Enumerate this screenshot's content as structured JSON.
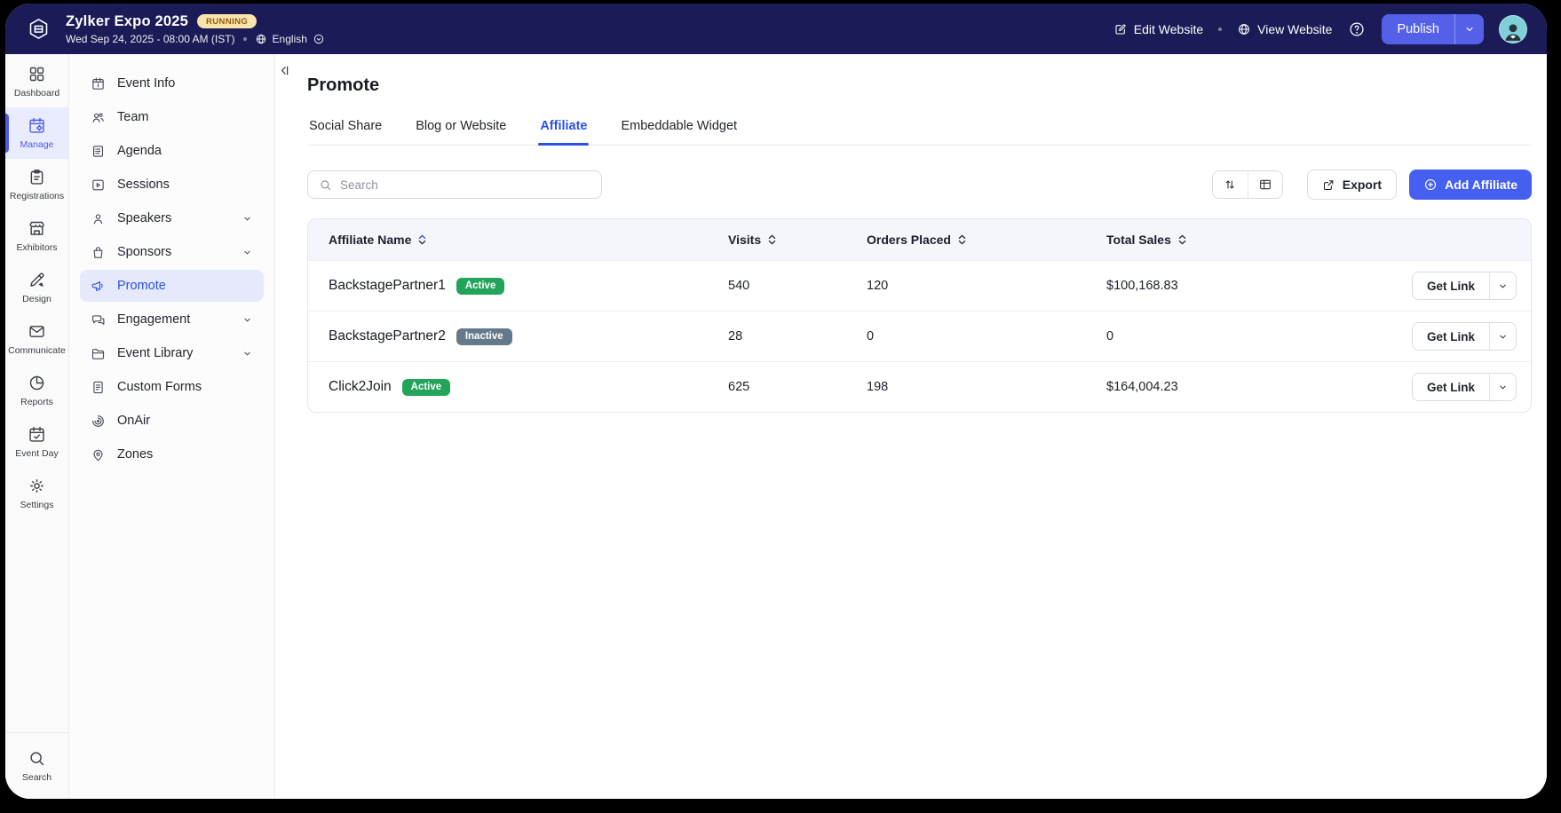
{
  "header": {
    "event_title": "Zylker Expo 2025",
    "status_badge": "RUNNING",
    "event_datetime": "Wed Sep 24, 2025 - 08:00 AM (IST)",
    "language": "English",
    "edit_website_label": "Edit Website",
    "view_website_label": "View Website",
    "publish_label": "Publish"
  },
  "nav_rail": {
    "items": [
      {
        "label": "Dashboard",
        "icon": "dashboard",
        "active": false
      },
      {
        "label": "Manage",
        "icon": "manage",
        "active": true
      },
      {
        "label": "Registrations",
        "icon": "registrations",
        "active": false
      },
      {
        "label": "Exhibitors",
        "icon": "exhibitors",
        "active": false
      },
      {
        "label": "Design",
        "icon": "design",
        "active": false
      },
      {
        "label": "Communicate",
        "icon": "communicate",
        "active": false
      },
      {
        "label": "Reports",
        "icon": "reports",
        "active": false
      },
      {
        "label": "Event Day",
        "icon": "event-day",
        "active": false
      },
      {
        "label": "Settings",
        "icon": "settings",
        "active": false
      }
    ],
    "search_label": "Search"
  },
  "sidebar": {
    "items": [
      {
        "label": "Event Info",
        "icon": "event-info",
        "expandable": false,
        "active": false
      },
      {
        "label": "Team",
        "icon": "team",
        "expandable": false,
        "active": false
      },
      {
        "label": "Agenda",
        "icon": "agenda",
        "expandable": false,
        "active": false
      },
      {
        "label": "Sessions",
        "icon": "sessions",
        "expandable": false,
        "active": false
      },
      {
        "label": "Speakers",
        "icon": "speakers",
        "expandable": true,
        "active": false
      },
      {
        "label": "Sponsors",
        "icon": "sponsors",
        "expandable": true,
        "active": false
      },
      {
        "label": "Promote",
        "icon": "promote",
        "expandable": false,
        "active": true
      },
      {
        "label": "Engagement",
        "icon": "engagement",
        "expandable": true,
        "active": false
      },
      {
        "label": "Event Library",
        "icon": "event-library",
        "expandable": true,
        "active": false
      },
      {
        "label": "Custom Forms",
        "icon": "custom-forms",
        "expandable": false,
        "active": false
      },
      {
        "label": "OnAir",
        "icon": "onair",
        "expandable": false,
        "active": false
      },
      {
        "label": "Zones",
        "icon": "zones",
        "expandable": false,
        "active": false
      }
    ]
  },
  "main": {
    "page_title": "Promote",
    "tabs": [
      {
        "label": "Social Share",
        "active": false
      },
      {
        "label": "Blog or Website",
        "active": false
      },
      {
        "label": "Affiliate",
        "active": true
      },
      {
        "label": "Embeddable Widget",
        "active": false
      }
    ],
    "search_placeholder": "Search",
    "toolbar": {
      "export_label": "Export",
      "add_affiliate_label": "Add Affiliate"
    },
    "table": {
      "columns": [
        {
          "label": "Affiliate Name",
          "sorted": true
        },
        {
          "label": "Visits",
          "sorted": false
        },
        {
          "label": "Orders Placed",
          "sorted": false
        },
        {
          "label": "Total Sales",
          "sorted": false
        }
      ],
      "action_label": "Get Link",
      "rows": [
        {
          "name": "BackstagePartner1",
          "status": "Active",
          "visits": "540",
          "orders_placed": "120",
          "total_sales": "$100,168.83"
        },
        {
          "name": "BackstagePartner2",
          "status": "Inactive",
          "visits": "28",
          "orders_placed": "0",
          "total_sales": "0"
        },
        {
          "name": "Click2Join",
          "status": "Active",
          "visits": "625",
          "orders_placed": "198",
          "total_sales": "$164,004.23"
        }
      ]
    }
  },
  "colors": {
    "header_bg": "#1b1b57",
    "accent": "#4560f0",
    "publish_bg": "#5560e8",
    "active_tab": "#2b50e8",
    "nav_active": "#4c5be8",
    "status_active": "#22a45a",
    "status_inactive": "#64798a",
    "running_badge_bg": "#f8e5ad",
    "running_badge_text": "#995a0e",
    "table_header_bg": "#f4f6fc"
  }
}
